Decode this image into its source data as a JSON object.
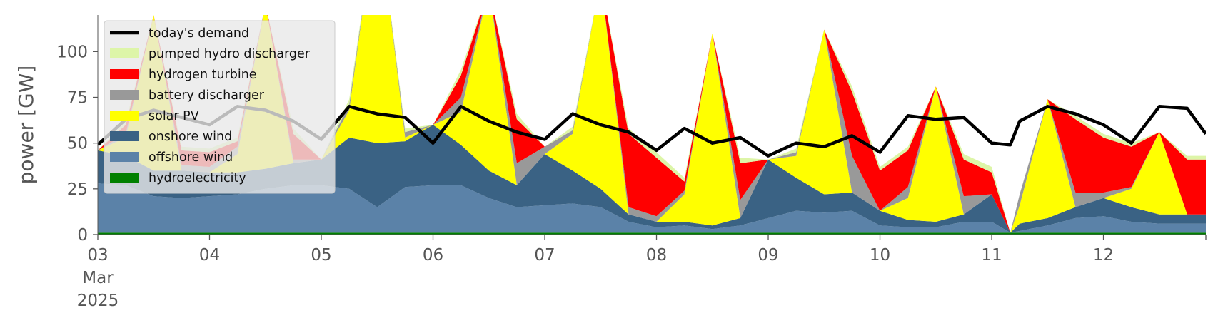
{
  "chart_data": {
    "type": "area",
    "title": "",
    "xlabel": "",
    "ylabel": "power [GW]",
    "xlim": [
      "2025-03-03T00:00",
      "2025-03-12T22:00"
    ],
    "ylim": [
      0,
      120
    ],
    "yticks": [
      0,
      25,
      50,
      75,
      100
    ],
    "xticks": [
      {
        "x": "2025-03-03",
        "label": "03",
        "sub1": "Mar",
        "sub2": "2025"
      },
      {
        "x": "2025-03-04",
        "label": "04",
        "sub1": "",
        "sub2": ""
      },
      {
        "x": "2025-03-05",
        "label": "05",
        "sub1": "",
        "sub2": ""
      },
      {
        "x": "2025-03-06",
        "label": "06",
        "sub1": "",
        "sub2": ""
      },
      {
        "x": "2025-03-07",
        "label": "07",
        "sub1": "",
        "sub2": ""
      },
      {
        "x": "2025-03-08",
        "label": "08",
        "sub1": "",
        "sub2": ""
      },
      {
        "x": "2025-03-09",
        "label": "09",
        "sub1": "",
        "sub2": ""
      },
      {
        "x": "2025-03-10",
        "label": "10",
        "sub1": "",
        "sub2": ""
      },
      {
        "x": "2025-03-11",
        "label": "11",
        "sub1": "",
        "sub2": ""
      },
      {
        "x": "2025-03-12",
        "label": "12",
        "sub1": "",
        "sub2": ""
      }
    ],
    "grid": false,
    "legend_position": "top-left",
    "x": [
      "2025-03-03T00:00",
      "2025-03-03T06:00",
      "2025-03-03T12:00",
      "2025-03-03T18:00",
      "2025-03-04T00:00",
      "2025-03-04T06:00",
      "2025-03-04T12:00",
      "2025-03-04T18:00",
      "2025-03-05T00:00",
      "2025-03-05T06:00",
      "2025-03-05T12:00",
      "2025-03-05T18:00",
      "2025-03-06T00:00",
      "2025-03-06T06:00",
      "2025-03-06T12:00",
      "2025-03-06T18:00",
      "2025-03-07T00:00",
      "2025-03-07T06:00",
      "2025-03-07T12:00",
      "2025-03-07T18:00",
      "2025-03-08T00:00",
      "2025-03-08T06:00",
      "2025-03-08T12:00",
      "2025-03-08T18:00",
      "2025-03-09T00:00",
      "2025-03-09T06:00",
      "2025-03-09T12:00",
      "2025-03-09T18:00",
      "2025-03-10T00:00",
      "2025-03-10T06:00",
      "2025-03-10T12:00",
      "2025-03-10T18:00",
      "2025-03-11T00:00",
      "2025-03-11T04:00",
      "2025-03-11T06:00",
      "2025-03-11T12:00",
      "2025-03-11T18:00",
      "2025-03-12T00:00",
      "2025-03-12T06:00",
      "2025-03-12T12:00",
      "2025-03-12T18:00",
      "2025-03-12T22:00"
    ],
    "series": [
      {
        "name": "hydroelectricity",
        "color": "#008000",
        "values": [
          1,
          1,
          1,
          1,
          1,
          1,
          1,
          1,
          1,
          1,
          1,
          1,
          1,
          1,
          1,
          1,
          1,
          1,
          1,
          1,
          1,
          1,
          1,
          1,
          1,
          1,
          1,
          1,
          1,
          1,
          1,
          1,
          1,
          1,
          1,
          1,
          1,
          1,
          1,
          1,
          1,
          1
        ]
      },
      {
        "name": "offshore wind",
        "color": "#5b82a8",
        "values": [
          27,
          26,
          20,
          19,
          20,
          21,
          24,
          26,
          26,
          24,
          14,
          25,
          26,
          26,
          19,
          14,
          15,
          16,
          14,
          6,
          3,
          4,
          2,
          4,
          8,
          12,
          11,
          12,
          4,
          3,
          3,
          6,
          6,
          0,
          1,
          4,
          8,
          9,
          6,
          5,
          5,
          5
        ]
      },
      {
        "name": "onshore wind",
        "color": "#3a6284",
        "values": [
          18,
          16,
          14,
          15,
          13,
          12,
          11,
          12,
          14,
          28,
          35,
          25,
          33,
          22,
          15,
          12,
          28,
          18,
          10,
          4,
          3,
          2,
          2,
          4,
          32,
          18,
          10,
          10,
          8,
          4,
          3,
          4,
          15,
          0,
          4,
          4,
          6,
          10,
          8,
          5,
          5,
          5
        ]
      },
      {
        "name": "solar PV",
        "color": "#ffff00",
        "values": [
          0,
          10,
          85,
          0,
          0,
          10,
          90,
          0,
          0,
          15,
          130,
          2,
          0,
          18,
          100,
          0,
          0,
          20,
          115,
          0,
          0,
          15,
          105,
          0,
          0,
          12,
          90,
          0,
          0,
          12,
          74,
          0,
          0,
          0,
          10,
          65,
          0,
          0,
          10,
          45,
          0,
          0
        ]
      },
      {
        "name": "battery discharger",
        "color": "#999999",
        "values": [
          0,
          2,
          0,
          3,
          3,
          4,
          0,
          2,
          0,
          3,
          0,
          3,
          0,
          8,
          0,
          12,
          4,
          2,
          0,
          4,
          3,
          2,
          0,
          10,
          0,
          2,
          0,
          20,
          0,
          6,
          0,
          10,
          0,
          0,
          6,
          0,
          8,
          3,
          1,
          0,
          0,
          0
        ]
      },
      {
        "name": "hydrogen turbine",
        "color": "#ff0000",
        "values": [
          0,
          5,
          0,
          8,
          8,
          3,
          0,
          14,
          0,
          0,
          0,
          0,
          0,
          12,
          0,
          24,
          0,
          0,
          0,
          40,
          32,
          5,
          0,
          20,
          0,
          0,
          0,
          35,
          22,
          20,
          0,
          20,
          12,
          0,
          0,
          0,
          40,
          30,
          22,
          0,
          30,
          30
        ]
      },
      {
        "name": "pumped hydro discharger",
        "color": "#ddf5a8",
        "values": [
          0,
          2,
          0,
          2,
          2,
          2,
          0,
          3,
          0,
          3,
          0,
          2,
          0,
          3,
          0,
          3,
          0,
          2,
          0,
          3,
          3,
          2,
          0,
          3,
          0,
          2,
          0,
          3,
          2,
          2,
          0,
          3,
          3,
          0,
          0,
          0,
          2,
          2,
          2,
          0,
          2,
          2
        ]
      }
    ],
    "demand": {
      "name": "today's demand",
      "color": "#000000",
      "values": [
        49,
        63,
        68,
        64,
        60,
        70,
        68,
        62,
        52,
        70,
        66,
        64,
        50,
        70,
        62,
        56,
        52,
        66,
        60,
        56,
        46,
        58,
        50,
        53,
        43,
        50,
        48,
        54,
        45,
        65,
        63,
        64,
        50,
        49,
        62,
        70,
        66,
        60,
        50,
        70,
        69,
        55
      ]
    },
    "legend": [
      {
        "label": "today's demand",
        "kind": "line",
        "color": "#000000"
      },
      {
        "label": "pumped hydro discharger",
        "kind": "patch",
        "color": "#ddf5a8"
      },
      {
        "label": "hydrogen turbine",
        "kind": "patch",
        "color": "#ff0000"
      },
      {
        "label": "battery discharger",
        "kind": "patch",
        "color": "#999999"
      },
      {
        "label": "solar PV",
        "kind": "patch",
        "color": "#ffff00"
      },
      {
        "label": "onshore wind",
        "kind": "patch",
        "color": "#3a6284"
      },
      {
        "label": "offshore wind",
        "kind": "patch",
        "color": "#5b82a8"
      },
      {
        "label": "hydroelectricity",
        "kind": "patch",
        "color": "#008000"
      }
    ]
  }
}
